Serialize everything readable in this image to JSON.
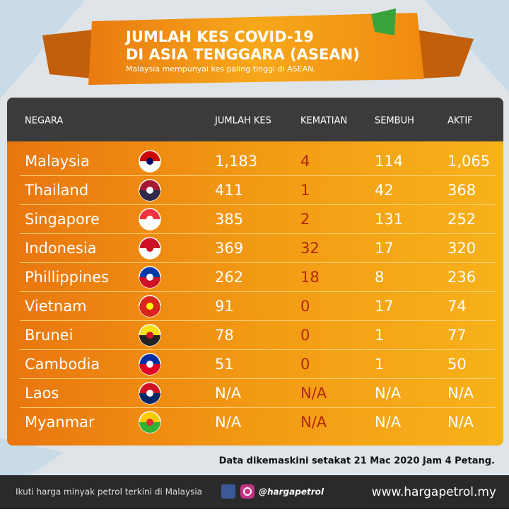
{
  "header": {
    "title_lines": [
      "JUMLAH KES COVID-19",
      "DI ASIA TENGGARA (ASEAN)"
    ],
    "subtitle": "Malaysia mempunyai kes paling tinggi di ASEAN."
  },
  "table": {
    "columns": [
      "NEGARA",
      "JUMLAH KES",
      "KEMATIAN",
      "SEMBUH",
      "AKTIF"
    ],
    "rows": [
      [
        "Malaysia",
        "1,183",
        "4",
        "114",
        "1,065"
      ],
      [
        "Thailand",
        "411",
        "1",
        "42",
        "368"
      ],
      [
        "Singapore",
        "385",
        "2",
        "131",
        "252"
      ],
      [
        "Indonesia",
        "369",
        "32",
        "17",
        "320"
      ],
      [
        "Phillippines",
        "262",
        "18",
        "8",
        "236"
      ],
      [
        "Vietnam",
        "91",
        "0",
        "17",
        "74"
      ],
      [
        "Brunei",
        "78",
        "0",
        "1",
        "77"
      ],
      [
        "Cambodia",
        "51",
        "0",
        "1",
        "50"
      ],
      [
        "Laos",
        "N/A",
        "N/A",
        "N/A",
        "N/A"
      ],
      [
        "Myanmar",
        "N/A",
        "N/A",
        "N/A",
        "N/A"
      ]
    ]
  },
  "note": "Data dikemaskini setakat 21 Mac 2020 Jam 4 Petang.",
  "footer": {
    "tagline": "Ikuti harga minyak petrol terkini di Malaysia",
    "handle": "@hargapetrol",
    "website": "www.hargapetrol.my"
  }
}
